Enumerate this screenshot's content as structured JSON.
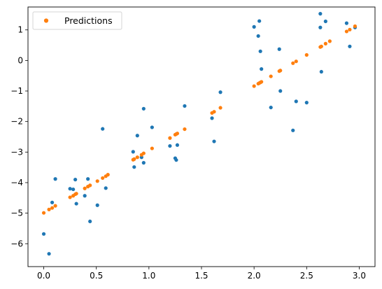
{
  "chart_data": {
    "type": "scatter",
    "xlim": [
      -0.15,
      3.15
    ],
    "ylim": [
      -6.75,
      1.75
    ],
    "x_ticks": [
      0.0,
      0.5,
      1.0,
      1.5,
      2.0,
      2.5,
      3.0
    ],
    "x_tick_labels": [
      "0.0",
      "0.5",
      "1.0",
      "1.5",
      "2.0",
      "2.5",
      "3.0"
    ],
    "y_ticks": [
      -6,
      -5,
      -4,
      -3,
      -2,
      -1,
      0,
      1
    ],
    "y_tick_labels": [
      "−6",
      "−5",
      "−4",
      "−3",
      "−2",
      "−1",
      "0",
      "1"
    ],
    "grid": false,
    "legend": {
      "position": "top-left",
      "entries": [
        "Predictions"
      ]
    },
    "colors": {
      "observed": "#1f77b4",
      "predictions": "#ff7f0e"
    },
    "series": [
      {
        "points": [
          [
            0.0,
            -5.68
          ],
          [
            0.05,
            -6.33
          ],
          [
            0.08,
            -4.65
          ],
          [
            0.11,
            -3.88
          ],
          [
            0.25,
            -4.2
          ],
          [
            0.28,
            -4.22
          ],
          [
            0.3,
            -3.9
          ],
          [
            0.31,
            -4.69
          ],
          [
            0.39,
            -4.43
          ],
          [
            0.42,
            -3.88
          ],
          [
            0.44,
            -5.27
          ],
          [
            0.51,
            -4.74
          ],
          [
            0.56,
            -2.24
          ],
          [
            0.59,
            -4.18
          ],
          [
            0.85,
            -2.99
          ],
          [
            0.86,
            -3.49
          ],
          [
            0.89,
            -2.46
          ],
          [
            0.93,
            -3.17
          ],
          [
            0.95,
            -1.58
          ],
          [
            0.95,
            -3.35
          ],
          [
            1.03,
            -2.19
          ],
          [
            1.2,
            -2.8
          ],
          [
            1.25,
            -3.2
          ],
          [
            1.26,
            -3.26
          ],
          [
            1.27,
            -2.77
          ],
          [
            1.34,
            -1.49
          ],
          [
            1.6,
            -1.89
          ],
          [
            1.62,
            -2.65
          ],
          [
            1.68,
            -1.04
          ],
          [
            2.0,
            1.1
          ],
          [
            2.04,
            0.8
          ],
          [
            2.05,
            1.29
          ],
          [
            2.06,
            0.3
          ],
          [
            2.07,
            -0.28
          ],
          [
            2.16,
            -1.54
          ],
          [
            2.24,
            0.37
          ],
          [
            2.25,
            -1.0
          ],
          [
            2.37,
            -2.29
          ],
          [
            2.4,
            -1.34
          ],
          [
            2.5,
            -1.38
          ],
          [
            2.63,
            1.08
          ],
          [
            2.63,
            1.53
          ],
          [
            2.64,
            -0.37
          ],
          [
            2.68,
            1.28
          ],
          [
            2.88,
            1.22
          ],
          [
            2.91,
            0.46
          ],
          [
            2.96,
            1.08
          ]
        ]
      },
      {
        "name": "Predictions",
        "points": [
          [
            0.0,
            -4.99
          ],
          [
            0.05,
            -4.88
          ],
          [
            0.08,
            -4.83
          ],
          [
            0.11,
            -4.76
          ],
          [
            0.25,
            -4.48
          ],
          [
            0.28,
            -4.43
          ],
          [
            0.3,
            -4.38
          ],
          [
            0.31,
            -4.36
          ],
          [
            0.39,
            -4.19
          ],
          [
            0.42,
            -4.13
          ],
          [
            0.44,
            -4.09
          ],
          [
            0.51,
            -3.95
          ],
          [
            0.56,
            -3.85
          ],
          [
            0.59,
            -3.79
          ],
          [
            0.61,
            -3.74
          ],
          [
            0.85,
            -3.25
          ],
          [
            0.86,
            -3.23
          ],
          [
            0.89,
            -3.17
          ],
          [
            0.93,
            -3.09
          ],
          [
            0.95,
            -3.04
          ],
          [
            1.03,
            -2.88
          ],
          [
            1.2,
            -2.54
          ],
          [
            1.25,
            -2.43
          ],
          [
            1.26,
            -2.41
          ],
          [
            1.27,
            -2.39
          ],
          [
            1.34,
            -2.25
          ],
          [
            1.6,
            -1.72
          ],
          [
            1.62,
            -1.68
          ],
          [
            1.68,
            -1.55
          ],
          [
            2.0,
            -0.84
          ],
          [
            2.04,
            -0.76
          ],
          [
            2.05,
            -0.74
          ],
          [
            2.06,
            -0.72
          ],
          [
            2.07,
            -0.7
          ],
          [
            2.16,
            -0.52
          ],
          [
            2.24,
            -0.35
          ],
          [
            2.25,
            -0.33
          ],
          [
            2.37,
            -0.09
          ],
          [
            2.4,
            -0.03
          ],
          [
            2.5,
            0.18
          ],
          [
            2.63,
            0.44
          ],
          [
            2.64,
            0.46
          ],
          [
            2.68,
            0.55
          ],
          [
            2.72,
            0.63
          ],
          [
            2.88,
            0.95
          ],
          [
            2.91,
            1.01
          ],
          [
            2.96,
            1.12
          ]
        ]
      }
    ]
  }
}
